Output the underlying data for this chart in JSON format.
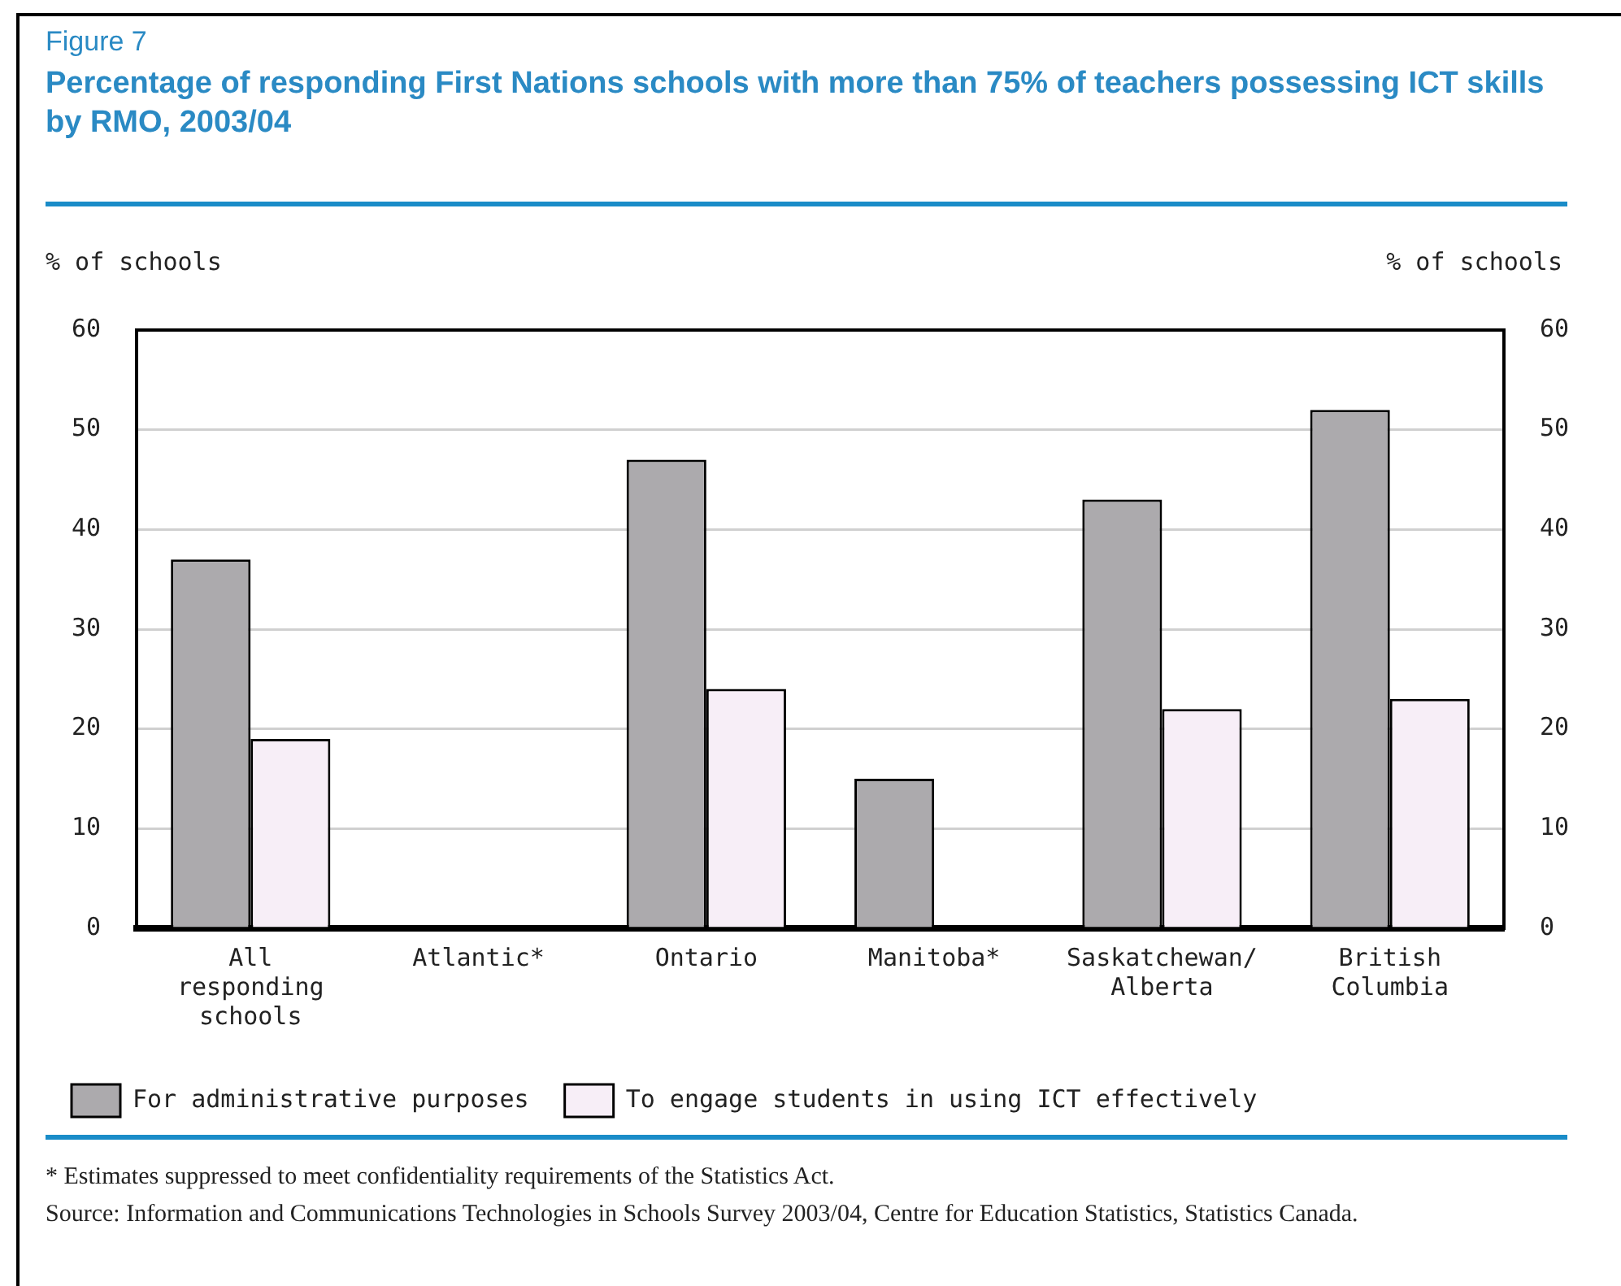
{
  "chart_data": {
    "type": "bar",
    "subtitle": "Figure 7",
    "title": "Percentage of responding First Nations schools with more than 75% of teachers possessing ICT skills by RMO, 2003/04",
    "ylabel": "% of schools",
    "y2label": "% of schools",
    "categories": [
      "All responding schools",
      "Atlantic*",
      "Ontario",
      "Manitoba*",
      "Saskatchewan/ Alberta",
      "British Columbia"
    ],
    "series": [
      {
        "name": "For administrative purposes",
        "color": "#acaaad",
        "values": [
          37,
          null,
          47,
          15,
          43,
          52
        ]
      },
      {
        "name": "To engage students in using ICT effectively",
        "color": "#f7eef7",
        "values": [
          19,
          null,
          24,
          null,
          22,
          23
        ]
      }
    ],
    "ylim": [
      0,
      60
    ],
    "yticks": [
      0,
      10,
      20,
      30,
      40,
      50,
      60
    ],
    "y2lim": [
      0,
      60
    ],
    "y2ticks": [
      0,
      10,
      20,
      30,
      40,
      50,
      60
    ],
    "grid": "y",
    "legend": "bottom",
    "annotations": [
      "*   Estimates suppressed to meet confidentiality requirements of the Statistics Act.",
      "Source:  Information and Communications Technologies in Schools Survey 2003/04, Centre for Education Statistics, Statistics Canada."
    ]
  }
}
